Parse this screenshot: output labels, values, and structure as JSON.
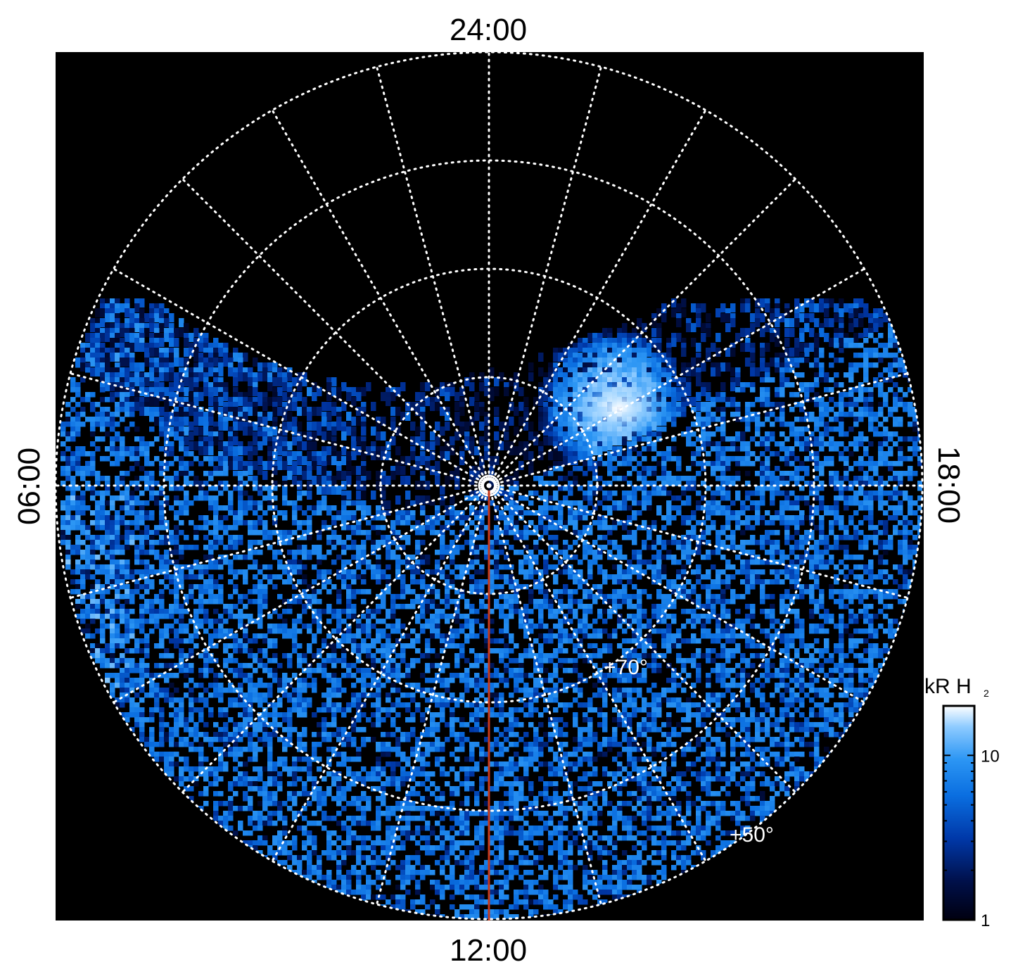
{
  "chart_data": {
    "type": "heatmap",
    "projection": "polar",
    "local_time_labels": {
      "top": "24:00",
      "bottom": "12:00",
      "left": "06:00",
      "right": "18:00"
    },
    "latitude_labels": [
      "+70°",
      "+50°"
    ],
    "grid": true,
    "grid_style": "dotted white",
    "grid_latitudes_deg": [
      80,
      70,
      60,
      50
    ],
    "grid_longitude_step_deg": 15,
    "colorbar": {
      "title": "kR H",
      "title_subscript": "2",
      "scale": "log",
      "range": [
        1,
        20
      ],
      "ticks": [
        {
          "value": 1,
          "label": "1"
        },
        {
          "value": 10,
          "label": "10"
        }
      ],
      "colormap": [
        "#000010",
        "#00104a",
        "#0038a8",
        "#0a6ee0",
        "#2c96f4",
        "#8ccaff",
        "#ffffff"
      ]
    },
    "background_color": "#000000",
    "auroral_oval": {
      "description_values_kR": {
        "peak": 20,
        "oval_typical": 6,
        "background": 2
      },
      "bright_spot_local_time": "~21:00"
    },
    "meridian_line": {
      "color": "#c8381a",
      "from": "pole",
      "to": "12:00"
    }
  }
}
